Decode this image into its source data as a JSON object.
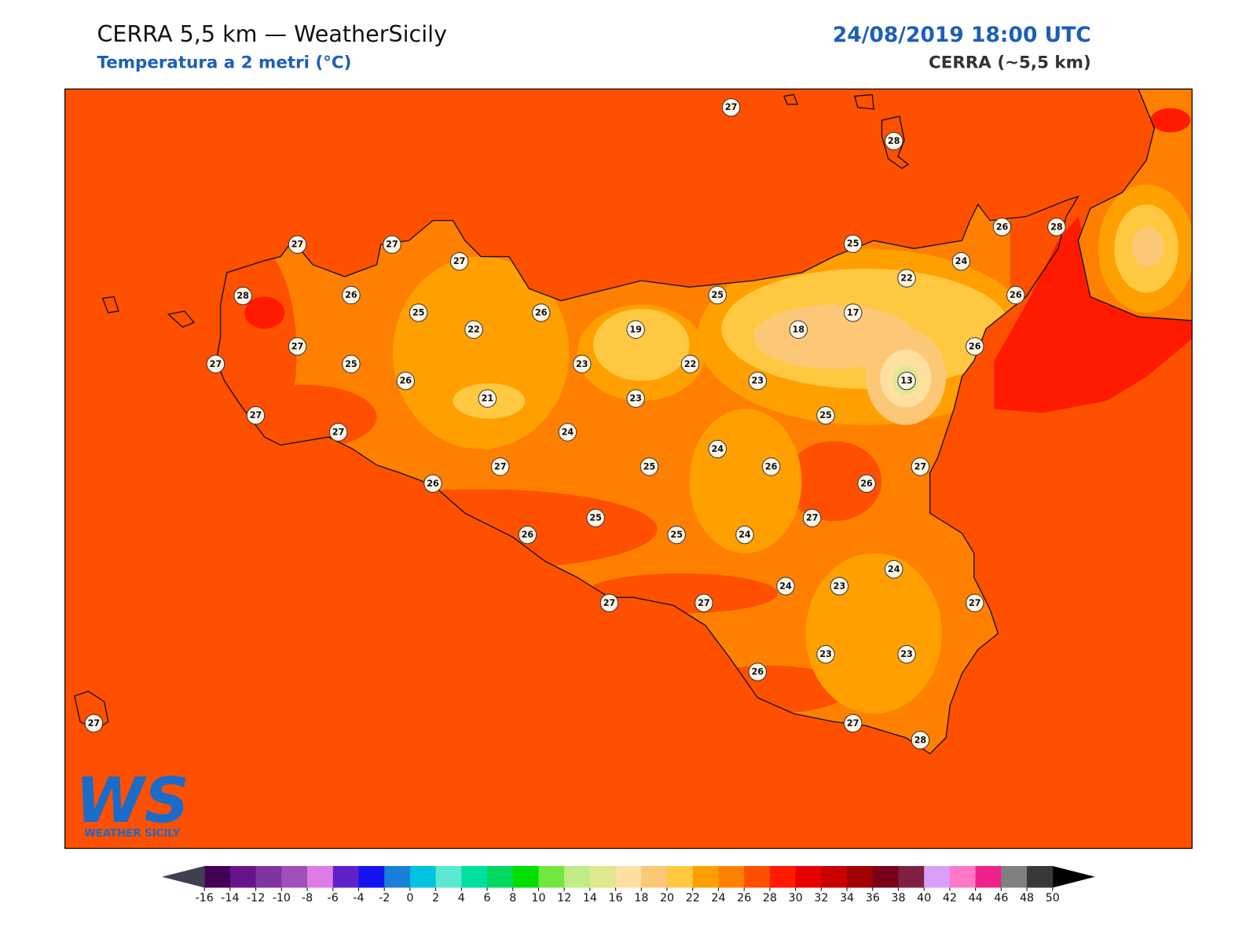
{
  "header": {
    "title": "CERRA 5,5 km — WeatherSicily",
    "subtitle": "Temperatura a 2 metri (°C)",
    "datetime": "24/08/2019 18:00 UTC",
    "model": "CERRA (~5,5 km)"
  },
  "stations": [
    27,
    28,
    27,
    27,
    27,
    25,
    26,
    28,
    24,
    22,
    28,
    26,
    25,
    26,
    25,
    26,
    17,
    19,
    22,
    18,
    27,
    26,
    27,
    25,
    23,
    22,
    26,
    23,
    13,
    21,
    23,
    27,
    25,
    27,
    24,
    24,
    27,
    25,
    26,
    27,
    26,
    26,
    25,
    27,
    26,
    25,
    24,
    24,
    24,
    23,
    27,
    27,
    27,
    26,
    23,
    23,
    27,
    28,
    27
  ],
  "logo": {
    "mark": "WS",
    "name": "WEATHER SICILY"
  },
  "colorbar": {
    "ticks": [
      -16,
      -14,
      -12,
      -10,
      -8,
      -6,
      -4,
      -2,
      0,
      2,
      4,
      6,
      8,
      10,
      12,
      14,
      16,
      18,
      20,
      22,
      24,
      26,
      28,
      30,
      32,
      34,
      36,
      38,
      40,
      42,
      44,
      46,
      48,
      50
    ],
    "colors": [
      "#440055",
      "#66148c",
      "#7f35a0",
      "#a050b8",
      "#e07be6",
      "#5e22c8",
      "#1414f0",
      "#1a7fd8",
      "#00c3e0",
      "#5ae8d0",
      "#00e0a0",
      "#00d860",
      "#00e000",
      "#70e840",
      "#c0ec88",
      "#e0e890",
      "#ffe0a0",
      "#fcc878",
      "#ffc840",
      "#ffa000",
      "#ff8000",
      "#ff5000",
      "#ff1a00",
      "#e60000",
      "#c80000",
      "#a00000",
      "#780018",
      "#802040",
      "#d8a0f8",
      "#ff78c8",
      "#f0208c",
      "#808080",
      "#383838"
    ],
    "extend_colors": [
      "#3f3f4f",
      "#000000"
    ]
  }
}
